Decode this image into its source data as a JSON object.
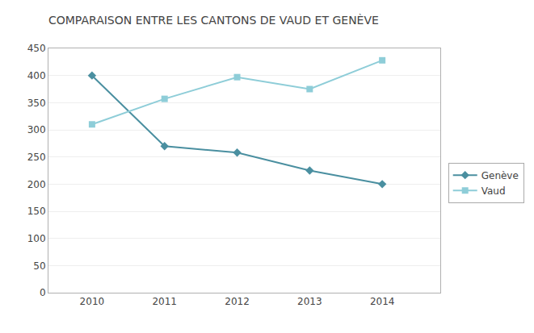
{
  "chart_data": {
    "type": "line",
    "title": "COMPARAISON ENTRE LES CANTONS DE VAUD ET GENÈVE",
    "x": [
      2010,
      2011,
      2012,
      2013,
      2014
    ],
    "series": [
      {
        "name": "Genève",
        "color": "#4a8fa0",
        "marker": "diamond",
        "line_style": "solid",
        "values": [
          400,
          270,
          258,
          225,
          200
        ]
      },
      {
        "name": "Vaud",
        "color": "#8ecdd8",
        "marker": "square",
        "line_style": "solid",
        "values": [
          310,
          357,
          397,
          375,
          428
        ]
      }
    ],
    "xlim": [
      2009.4,
      2014.8
    ],
    "xticks": [
      2010,
      2011,
      2012,
      2013,
      2014
    ],
    "ylim": [
      0,
      450
    ],
    "yticks": [
      0,
      50,
      100,
      150,
      200,
      250,
      300,
      350,
      400,
      450
    ],
    "grid": "y",
    "legend": "right"
  }
}
